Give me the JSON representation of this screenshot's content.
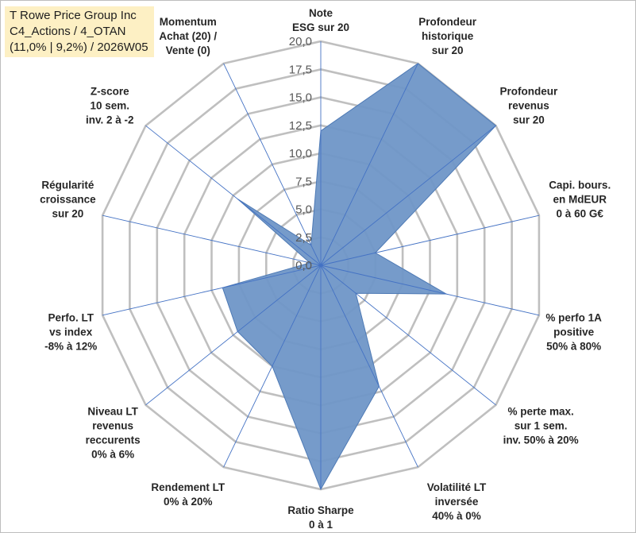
{
  "title_box": {
    "line1": "T Rowe Price Group Inc",
    "line2": "C4_Actions / 4_OTAN",
    "line3": "(11,0% | 9,2%) / 2026W05"
  },
  "chart_data": {
    "type": "radar",
    "title": "T Rowe Price Group Inc",
    "range": [
      0,
      20
    ],
    "tick_step": 2.5,
    "tick_labels": [
      "0,0",
      "2,5",
      "5,0",
      "7,5",
      "10,0",
      "12,5",
      "15,0",
      "17,5",
      "20,0"
    ],
    "axes": [
      [
        "Note",
        "ESG sur 20"
      ],
      [
        "Profondeur",
        "historique",
        "sur 20"
      ],
      [
        "Profondeur",
        "revenus",
        "sur 20"
      ],
      [
        "Capi. bours.",
        "en MdEUR",
        "0 à 60 G€"
      ],
      [
        "% perfo 1A",
        "positive",
        "50% à 80%"
      ],
      [
        "% perte max.",
        "sur 1 sem.",
        "inv. 50% à 20%"
      ],
      [
        "Volatilité LT",
        "inversée",
        "40% à 0%"
      ],
      [
        "Ratio Sharpe",
        "0 à 1"
      ],
      [
        "Rendement LT",
        "0% à 20%"
      ],
      [
        "Niveau LT",
        "revenus",
        "reccurents",
        "0% à 6%"
      ],
      [
        "Perfo. LT",
        "vs index",
        "-8% à 12%"
      ],
      [
        "Régularité",
        "croissance",
        "sur 20"
      ],
      [
        "Z-score",
        "10 sem.",
        "inv. 2 à -2"
      ],
      [
        "Momentum",
        "Achat (20) /",
        "Vente (0)"
      ]
    ],
    "series": [
      {
        "name": "T Rowe Price Group Inc",
        "values": [
          12.0,
          20.0,
          20.0,
          5.0,
          11.5,
          4.0,
          12.0,
          20.0,
          10.0,
          9.5,
          9.0,
          1.0,
          9.5,
          2.0
        ]
      }
    ],
    "colors": {
      "fill": "#6f96c7",
      "stroke": "#4e7ab5",
      "grid": "#bfbfbf",
      "spoke": "#4472c4"
    }
  }
}
